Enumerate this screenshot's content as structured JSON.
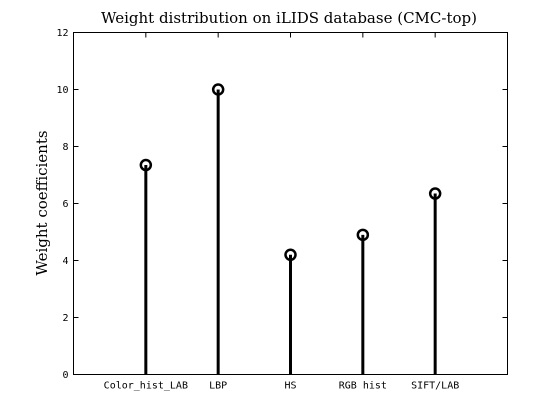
{
  "chart_data": {
    "type": "stem",
    "title": "Weight distribution on iLIDS database (CMC-top)",
    "xlabel": "",
    "ylabel": "Weight coefficients",
    "categories": [
      "Color_hist_LAB",
      "LBP",
      "HS",
      "RGB hist",
      "SIFT/LAB"
    ],
    "values": [
      7.35,
      10.0,
      4.2,
      4.9,
      6.35
    ],
    "ylim": [
      0,
      12
    ],
    "yticks": [
      0,
      2,
      4,
      6,
      8,
      10,
      12
    ],
    "xlim": [
      0,
      6
    ],
    "grid": false,
    "legend": "none",
    "marker": "circle",
    "color": "#000000"
  }
}
